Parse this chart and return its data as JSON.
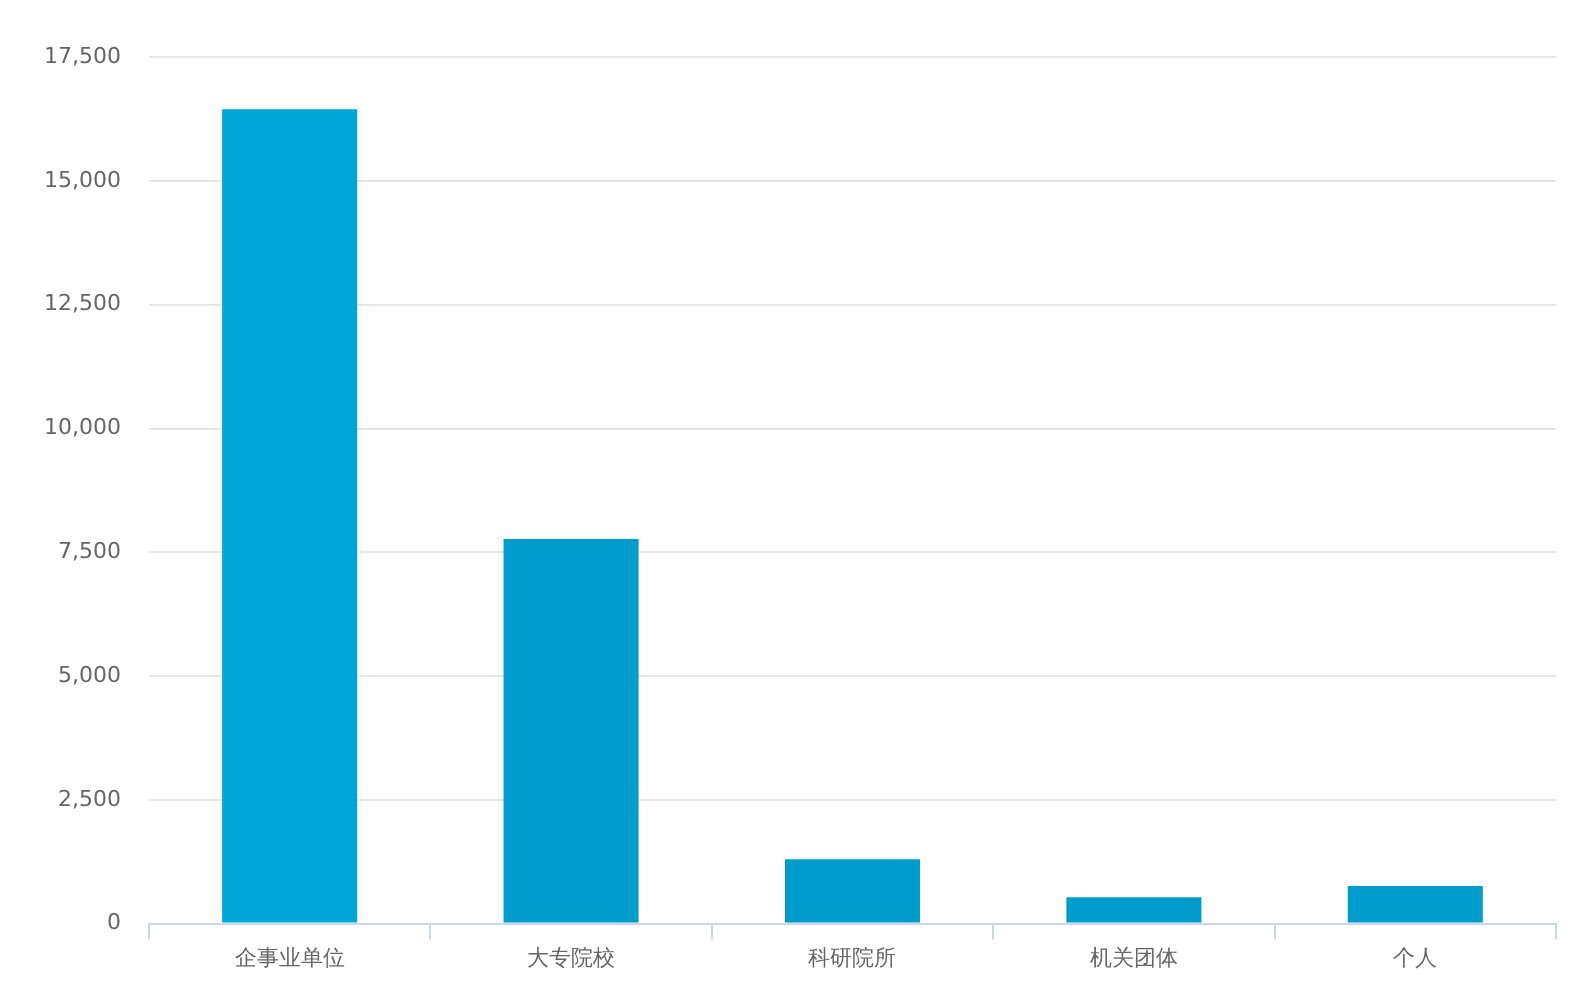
{
  "chart_data": {
    "type": "bar",
    "categories": [
      "企事业单位",
      "大专院校",
      "科研院所",
      "机关团体",
      "个人"
    ],
    "values": [
      16450,
      7770,
      1300,
      530,
      760
    ],
    "colors": [
      "#00a6d8",
      "#009ccc",
      "#009ccc",
      "#009ccc",
      "#009ccc"
    ],
    "ylim": [
      0,
      17500
    ],
    "yticks": [
      0,
      {
        "value": 2500,
        "label": "2,500"
      },
      {
        "value": 5000,
        "label": "5,000"
      },
      {
        "value": 7500,
        "label": "7,500"
      },
      {
        "value": 10000,
        "label": "10,000"
      },
      {
        "value": 12500,
        "label": "12,500"
      },
      {
        "value": 15000,
        "label": "15,000"
      },
      {
        "value": 17500,
        "label": "17,500"
      }
    ],
    "grid": "y",
    "legend": false
  }
}
